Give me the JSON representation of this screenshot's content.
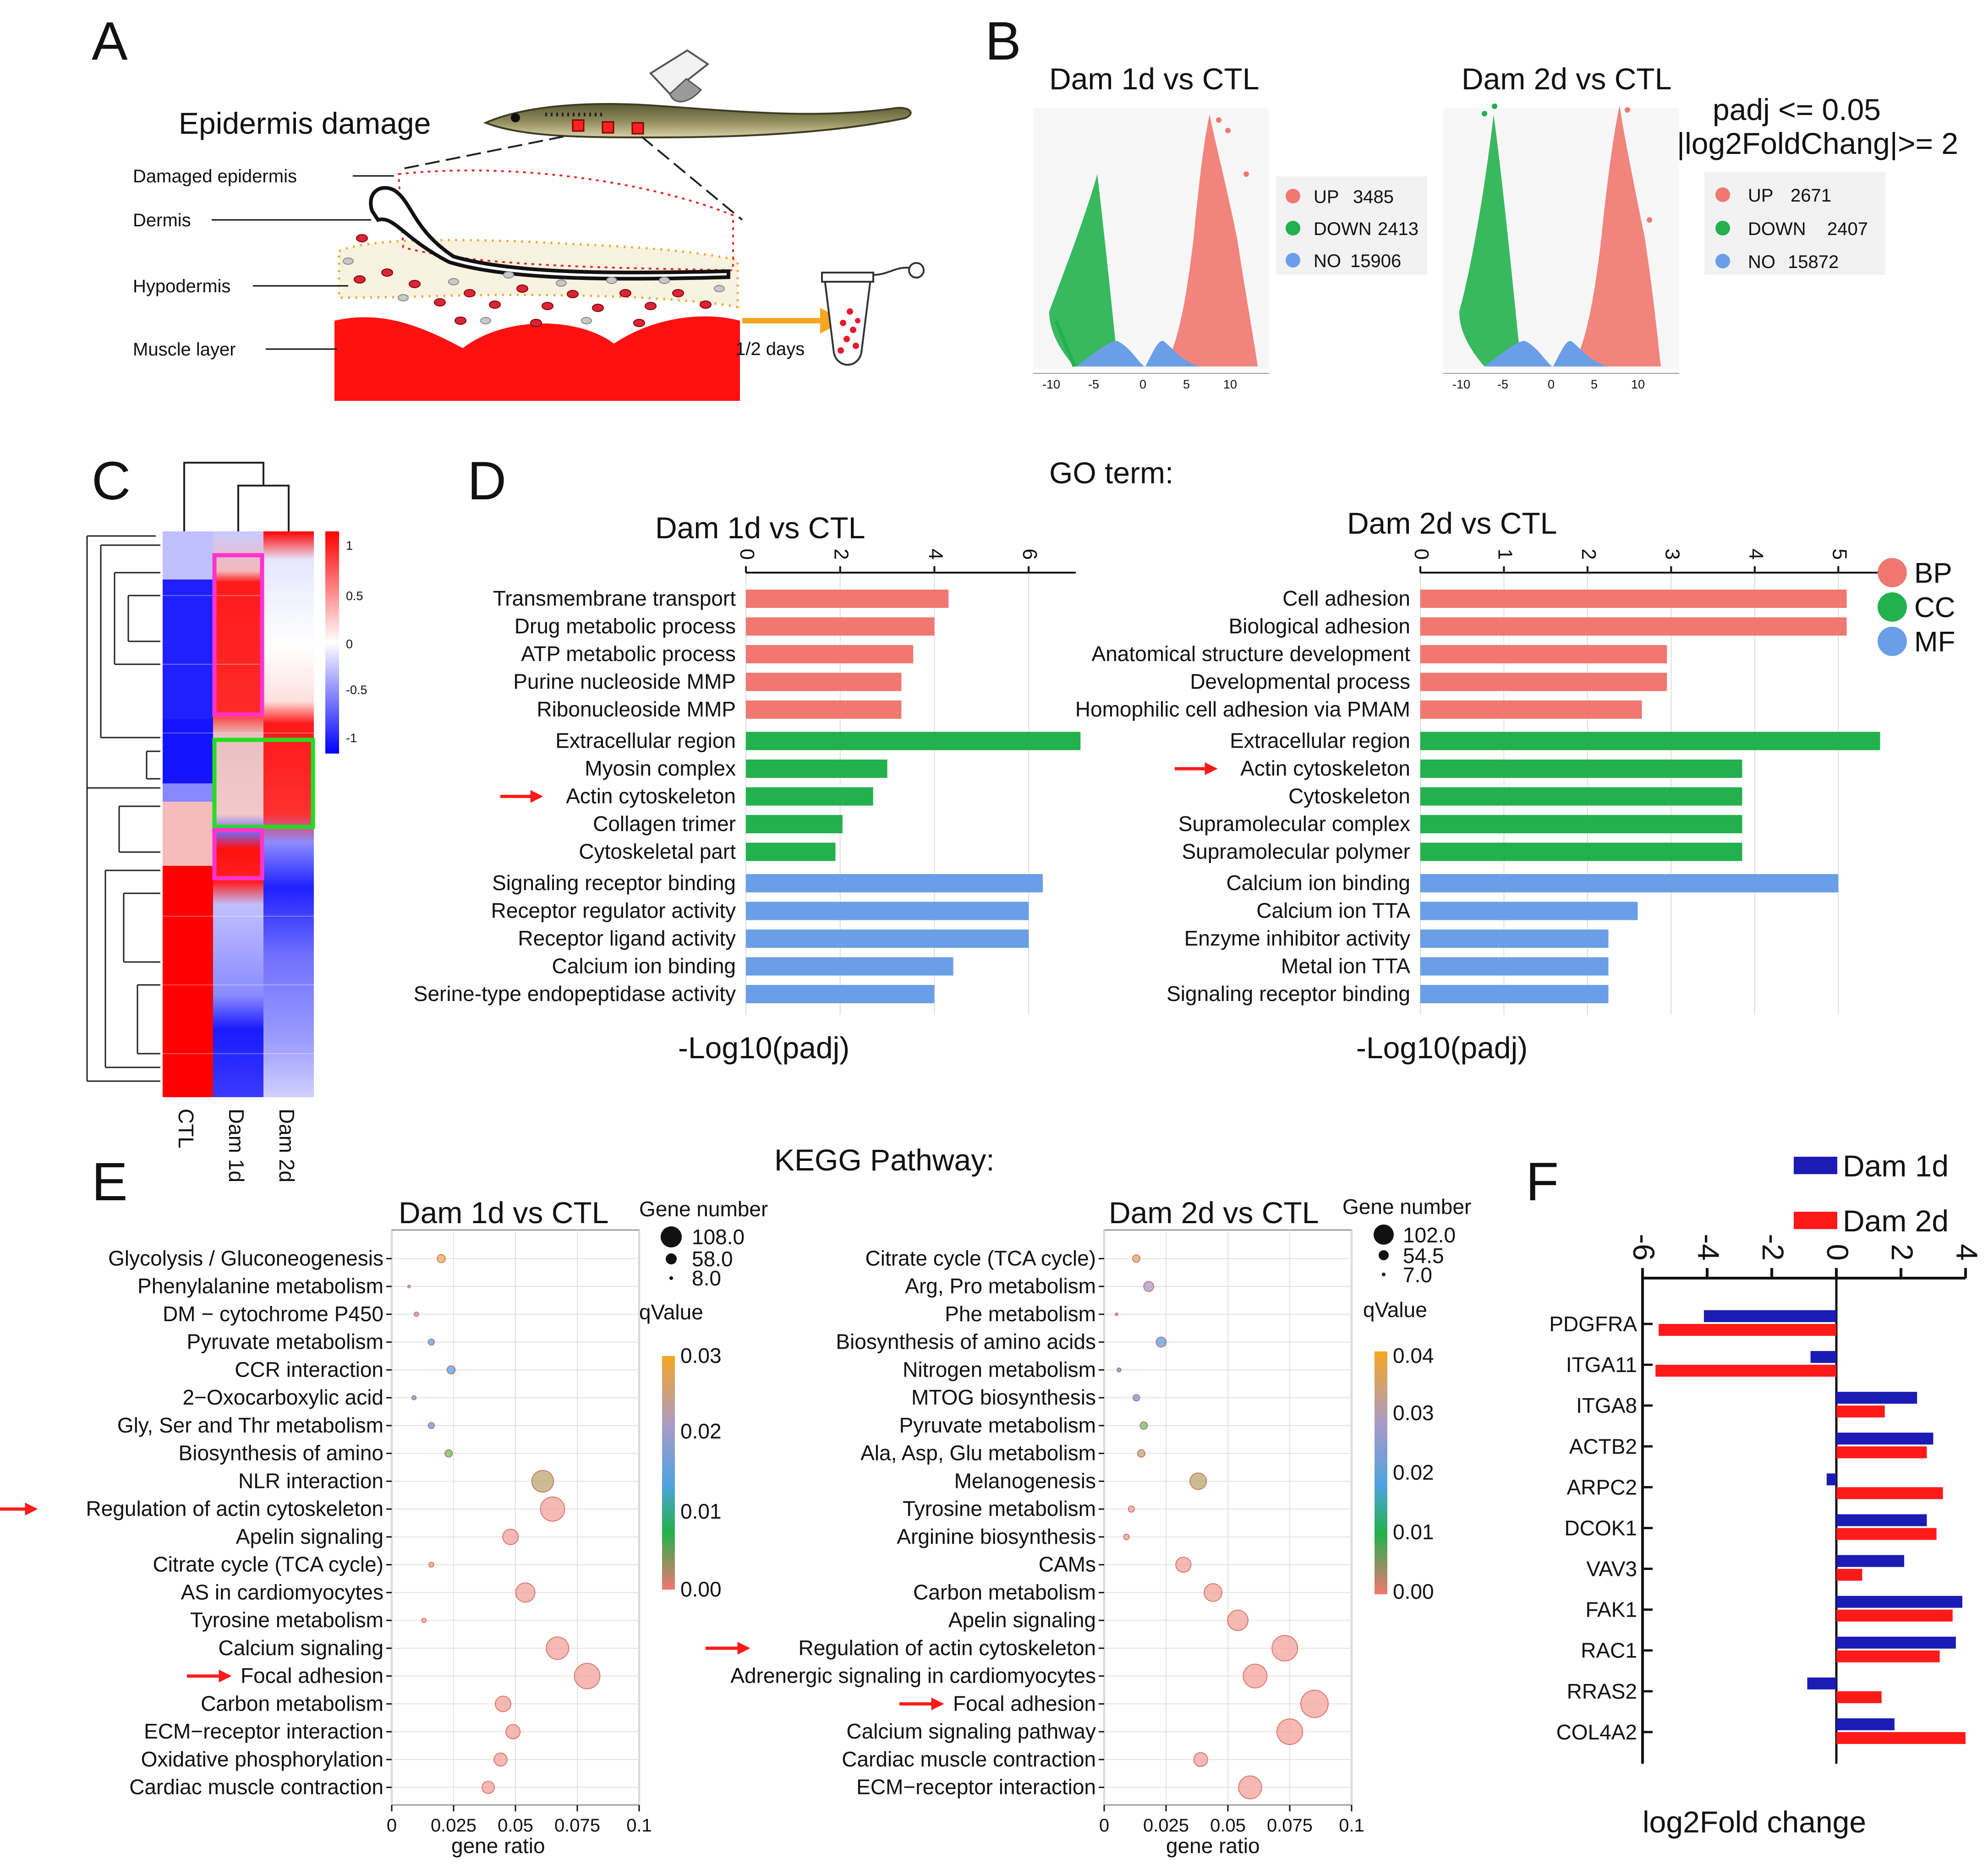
{
  "panels": {
    "A": {
      "letter": "A",
      "title": "Epidermis damage",
      "layers": [
        "Damaged epidermis",
        "Dermis",
        "Hypodermis",
        "Muscle layer"
      ],
      "time": "1/2 days"
    },
    "B": {
      "letter": "B",
      "threshold": [
        "padj <= 0.05",
        "|log2FoldChang|>= 2"
      ],
      "plots": [
        {
          "title": "Dam 1d vs CTL",
          "legend": [
            {
              "key": "UP",
              "count": "3485",
              "color": "#F07870"
            },
            {
              "key": "DOWN",
              "count": "2413",
              "color": "#22B14C"
            },
            {
              "key": "NO",
              "count": "15906",
              "color": "#6A9FE8"
            }
          ],
          "ticks": [
            "-10",
            "-5",
            "0",
            "5",
            "10"
          ]
        },
        {
          "title": "Dam 2d vs CTL",
          "legend": [
            {
              "key": "UP",
              "count": "2671",
              "color": "#F07870"
            },
            {
              "key": "DOWN",
              "count": "2407",
              "color": "#22B14C"
            },
            {
              "key": "NO",
              "count": "15872",
              "color": "#6A9FE8"
            }
          ],
          "ticks": [
            "-10",
            "-5",
            "0",
            "5",
            "10"
          ]
        }
      ]
    },
    "C": {
      "letter": "C",
      "columns": [
        "CTL",
        "Dam 1d",
        "Dam 2d"
      ],
      "scale": [
        "1",
        "0.5",
        "0",
        "-0.5",
        "-1"
      ]
    },
    "D": {
      "letter": "D",
      "header": "GO term:",
      "xlabel": "-Log10(padj)",
      "legend": [
        {
          "key": "BP",
          "color": "#F07870"
        },
        {
          "key": "CC",
          "color": "#22B14C"
        },
        {
          "key": "MF",
          "color": "#6A9FE8"
        }
      ]
    },
    "E": {
      "letter": "E",
      "header": "KEGG Pathway:",
      "xlabel": "gene ratio",
      "size_title": "Gene number",
      "q_title": "qValue"
    },
    "F": {
      "letter": "F",
      "xlabel": "log2Fold change",
      "legend": [
        {
          "name": "Dam 1d",
          "color": "#1B1BB5"
        },
        {
          "name": "Dam 2d",
          "color": "#FF1A1A"
        }
      ]
    }
  },
  "chart_data": [
    {
      "id": "go_dam1d",
      "type": "bar",
      "title": "Dam 1d vs CTL",
      "xlabel": "-Log10(padj)",
      "xlim": [
        0,
        7
      ],
      "ticks": [
        0,
        2,
        4,
        6
      ],
      "categories": [
        "Transmembrane transport",
        "Drug metabolic process",
        "ATP metabolic process",
        "Purine nucleoside MMP",
        "Ribonucleoside MMP",
        "Extracellular region",
        "Myosin complex",
        "Actin cytoskeleton",
        "Collagen trimer",
        "Cytoskeletal part",
        "Signaling receptor binding",
        "Receptor regulator activity",
        "Receptor ligand activity",
        "Calcium ion binding",
        "Serine-type endopeptidase activity"
      ],
      "values": [
        4.3,
        4.0,
        3.55,
        3.3,
        3.3,
        7.1,
        3.0,
        2.7,
        2.05,
        1.9,
        6.3,
        6.0,
        6.0,
        4.4,
        4.0
      ],
      "groups": [
        "BP",
        "BP",
        "BP",
        "BP",
        "BP",
        "CC",
        "CC",
        "CC",
        "CC",
        "CC",
        "MF",
        "MF",
        "MF",
        "MF",
        "MF"
      ],
      "highlight": "Actin cytoskeleton"
    },
    {
      "id": "go_dam2d",
      "type": "bar",
      "title": "Dam 2d vs CTL",
      "xlabel": "-Log10(padj)",
      "xlim": [
        0,
        5.3
      ],
      "ticks": [
        0,
        1,
        2,
        3,
        4,
        5
      ],
      "categories": [
        "Cell adhesion",
        "Biological adhesion",
        "Anatomical structure development",
        "Developmental process",
        "Homophilic cell adhesion via PMAM",
        "Extracellular region",
        "Actin cytoskeleton",
        "Cytoskeleton",
        "Supramolecular complex",
        "Supramolecular polymer",
        "Calcium ion binding",
        "Calcium ion TTA",
        "Enzyme inhibitor activity",
        "Metal ion TTA",
        "Signaling receptor binding"
      ],
      "values": [
        5.1,
        5.1,
        2.95,
        2.95,
        2.65,
        5.5,
        3.85,
        3.85,
        3.85,
        3.85,
        5.0,
        2.6,
        2.25,
        2.25,
        2.25
      ],
      "groups": [
        "BP",
        "BP",
        "BP",
        "BP",
        "BP",
        "CC",
        "CC",
        "CC",
        "CC",
        "CC",
        "MF",
        "MF",
        "MF",
        "MF",
        "MF"
      ],
      "highlight": "Actin cytoskeleton"
    },
    {
      "id": "kegg_dam1d",
      "type": "scatter",
      "title": "Dam 1d vs CTL",
      "xlabel": "gene ratio",
      "xlim": [
        0,
        0.1
      ],
      "ticks": [
        "0",
        "0.025",
        "0.05",
        "0.075",
        "0.1"
      ],
      "size_legend": [
        "108.0",
        "58.0",
        "8.0"
      ],
      "size_range": [
        8,
        108
      ],
      "q_ticks": [
        "0.03",
        "0.02",
        "0.01",
        "0.00"
      ],
      "q_max": 0.03,
      "categories": [
        "Glycolysis / Gluconeogenesis",
        "Phenylalanine metabolism",
        "DM − cytochrome P450",
        "Pyruvate metabolism",
        "CCR interaction",
        "2−Oxocarboxylic acid",
        "Gly, Ser and Thr metabolism",
        "Biosynthesis of amino",
        "NLR interaction",
        "Regulation of actin cytoskeleton",
        "Apelin signaling",
        "Citrate cycle (TCA cycle)",
        "AS in cardiomyocytes",
        "Tyrosine metabolism",
        "Calcium signaling",
        "Focal adhesion",
        "Carbon metabolism",
        "ECM−receptor interaction",
        "Oxidative phosphorylation",
        "Cardiac muscle contraction"
      ],
      "x": [
        0.02,
        0.007,
        0.01,
        0.016,
        0.024,
        0.009,
        0.016,
        0.023,
        0.061,
        0.065,
        0.048,
        0.016,
        0.054,
        0.013,
        0.067,
        0.079,
        0.045,
        0.049,
        0.044,
        0.039
      ],
      "size": [
        30,
        8,
        15,
        22,
        30,
        14,
        22,
        27,
        85,
        95,
        60,
        17,
        75,
        15,
        88,
        100,
        60,
        55,
        50,
        47
      ],
      "q": [
        0.024,
        0.021,
        0.017,
        0.011,
        0.011,
        0.01,
        0.01,
        0.009,
        0.004,
        0.0,
        0.0,
        0.0,
        0.0,
        0.0,
        0.0,
        0.0,
        0.0,
        0.0,
        0.0,
        0.0
      ],
      "highlights": [
        "Regulation of actin cytoskeleton",
        "Focal adhesion"
      ]
    },
    {
      "id": "kegg_dam2d",
      "type": "scatter",
      "title": "Dam 2d vs CTL",
      "xlabel": "gene ratio",
      "xlim": [
        0,
        0.1
      ],
      "ticks": [
        "0",
        "0.025",
        "0.05",
        "0.075",
        "0.1"
      ],
      "size_legend": [
        "102.0",
        "54.5",
        "7.0"
      ],
      "size_range": [
        7,
        102
      ],
      "q_ticks": [
        "0.04",
        "0.03",
        "0.02",
        "0.01",
        "0.00"
      ],
      "q_max": 0.04,
      "categories": [
        "Citrate cycle (TCA cycle)",
        "Arg, Pro metabolism",
        "Phe metabolism",
        "Biosynthesis of amino acids",
        "Nitrogen metabolism",
        "MTOG biosynthesis",
        "Pyruvate metabolism",
        "Ala, Asp, Glu metabolism",
        "Melanogenesis",
        "Tyrosine metabolism",
        "Arginine biosynthesis",
        "CAMs",
        "Carbon metabolism",
        "Apelin signaling",
        "Regulation of actin cytoskeleton",
        "Adrenergic signaling in cardiomyocytes",
        "Focal adhesion",
        "Calcium signaling pathway",
        "Cardiac muscle contraction",
        "ECM−receptor interaction"
      ],
      "x": [
        0.013,
        0.018,
        0.005,
        0.023,
        0.006,
        0.013,
        0.016,
        0.015,
        0.038,
        0.011,
        0.009,
        0.032,
        0.044,
        0.054,
        0.073,
        0.061,
        0.085,
        0.075,
        0.039,
        0.059
      ],
      "size": [
        25,
        35,
        7,
        35,
        12,
        22,
        25,
        25,
        60,
        20,
        18,
        55,
        65,
        75,
        95,
        88,
        102,
        95,
        50,
        85
      ],
      "q": [
        0.038,
        0.025,
        0.025,
        0.018,
        0.016,
        0.016,
        0.01,
        0.006,
        0.004,
        0.001,
        0.001,
        0.0,
        0.0,
        0.0,
        0.0,
        0.0,
        0.0,
        0.0,
        0.0,
        0.0
      ],
      "highlights": [
        "Regulation of actin cytoskeleton",
        "Focal adhesion"
      ]
    },
    {
      "id": "fc_bars",
      "type": "bar",
      "xlabel": "log2Fold change",
      "xlim": [
        -6,
        4
      ],
      "ticks": [
        -6,
        -4,
        -2,
        0,
        2,
        4
      ],
      "categories": [
        "PDGFRA",
        "ITGA11",
        "ITGA8",
        "ACTB2",
        "ARPC2",
        "DCOK1",
        "VAV3",
        "FAK1",
        "RAC1",
        "RRAS2",
        "COL4A2"
      ],
      "series": [
        {
          "name": "Dam 1d",
          "values": [
            -4.1,
            -0.8,
            2.5,
            3.0,
            -0.3,
            2.8,
            2.1,
            3.9,
            3.7,
            -0.9,
            1.8
          ]
        },
        {
          "name": "Dam 2d",
          "values": [
            -5.5,
            -5.6,
            1.5,
            2.8,
            3.3,
            3.1,
            0.8,
            3.6,
            3.2,
            1.4,
            4.0
          ]
        }
      ]
    }
  ]
}
